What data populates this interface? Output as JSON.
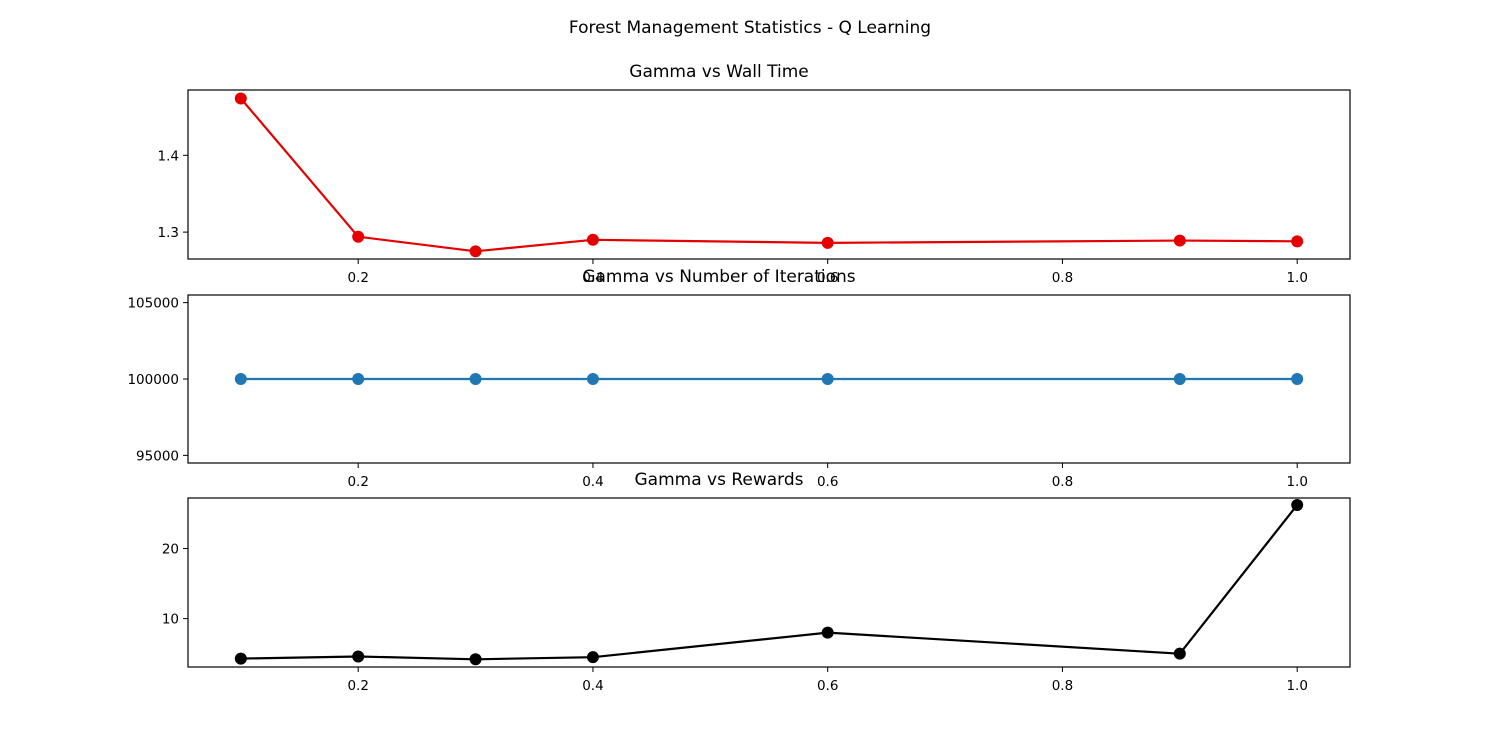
{
  "figure": {
    "suptitle": "Forest Management Statistics - Q Learning"
  },
  "chart_data": [
    {
      "type": "line",
      "title": "Gamma vs Wall Time",
      "xlabel": "",
      "ylabel": "",
      "xlim": [
        0.055,
        1.045
      ],
      "ylim": [
        1.265,
        1.485
      ],
      "xticks": [
        0.2,
        0.4,
        0.6,
        0.8,
        1.0
      ],
      "xtick_labels": [
        "0.2",
        "0.4",
        "0.6",
        "0.8",
        "1.0"
      ],
      "yticks": [
        1.3,
        1.4
      ],
      "ytick_labels": [
        "1.3",
        "1.4"
      ],
      "grid": false,
      "color": "#e50000",
      "x": [
        0.1,
        0.2,
        0.3,
        0.4,
        0.6,
        0.9,
        1.0
      ],
      "y": [
        1.474,
        1.294,
        1.275,
        1.29,
        1.286,
        1.289,
        1.288
      ]
    },
    {
      "type": "line",
      "title": "Gamma vs Number of Iterations",
      "xlabel": "",
      "ylabel": "",
      "xlim": [
        0.055,
        1.045
      ],
      "ylim": [
        94500,
        105500
      ],
      "xticks": [
        0.2,
        0.4,
        0.6,
        0.8,
        1.0
      ],
      "xtick_labels": [
        "0.2",
        "0.4",
        "0.6",
        "0.8",
        "1.0"
      ],
      "yticks": [
        95000,
        100000,
        105000
      ],
      "ytick_labels": [
        "95000",
        "100000",
        "105000"
      ],
      "grid": false,
      "color": "#1f77b4",
      "x": [
        0.1,
        0.2,
        0.3,
        0.4,
        0.6,
        0.9,
        1.0
      ],
      "y": [
        100000,
        100000,
        100000,
        100000,
        100000,
        100000,
        100000
      ]
    },
    {
      "type": "line",
      "title": "Gamma vs Rewards",
      "xlabel": "",
      "ylabel": "",
      "xlim": [
        0.055,
        1.045
      ],
      "ylim": [
        3.1,
        27.2
      ],
      "xticks": [
        0.2,
        0.4,
        0.6,
        0.8,
        1.0
      ],
      "xtick_labels": [
        "0.2",
        "0.4",
        "0.6",
        "0.8",
        "1.0"
      ],
      "yticks": [
        10,
        20
      ],
      "ytick_labels": [
        "10",
        "20"
      ],
      "grid": false,
      "color": "#000000",
      "x": [
        0.1,
        0.2,
        0.3,
        0.4,
        0.6,
        0.9,
        1.0
      ],
      "y": [
        4.3,
        4.6,
        4.2,
        4.5,
        8.0,
        5.0,
        26.2
      ]
    }
  ]
}
